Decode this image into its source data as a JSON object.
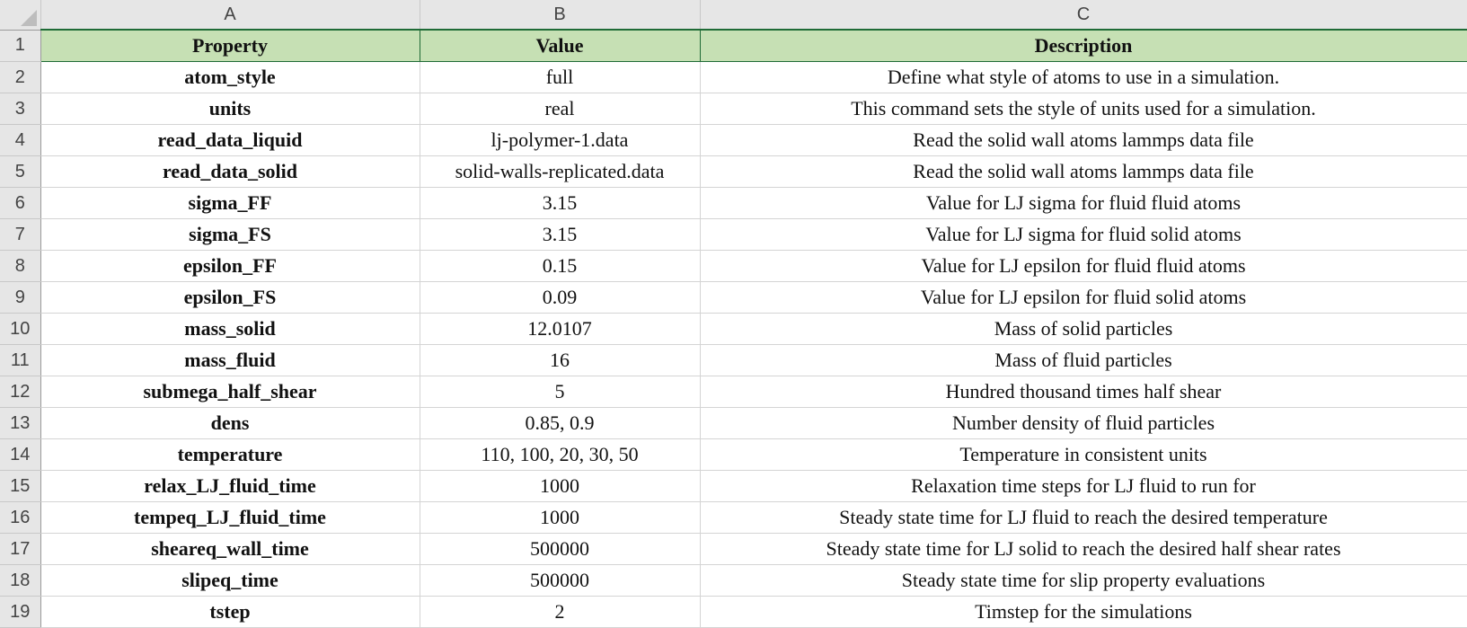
{
  "columns": [
    "A",
    "B",
    "C"
  ],
  "header": {
    "row": "1",
    "property": "Property",
    "value": "Value",
    "description": "Description"
  },
  "rows": [
    {
      "row": "2",
      "property": "atom_style",
      "value": "full",
      "description": "Define what style of atoms to use in a simulation."
    },
    {
      "row": "3",
      "property": "units",
      "value": "real",
      "description": "This command sets the style of units used for a simulation."
    },
    {
      "row": "4",
      "property": "read_data_liquid",
      "value": "lj-polymer-1.data",
      "description": "Read the solid wall atoms lammps data file"
    },
    {
      "row": "5",
      "property": "read_data_solid",
      "value": "solid-walls-replicated.data",
      "description": "Read the solid wall atoms lammps data file"
    },
    {
      "row": "6",
      "property": "sigma_FF",
      "value": "3.15",
      "description": "Value for LJ sigma for fluid fluid atoms"
    },
    {
      "row": "7",
      "property": "sigma_FS",
      "value": "3.15",
      "description": "Value for LJ sigma for fluid solid atoms"
    },
    {
      "row": "8",
      "property": "epsilon_FF",
      "value": "0.15",
      "description": "Value for LJ epsilon for fluid fluid atoms"
    },
    {
      "row": "9",
      "property": "epsilon_FS",
      "value": "0.09",
      "description": "Value for LJ epsilon for fluid solid atoms"
    },
    {
      "row": "10",
      "property": "mass_solid",
      "value": "12.0107",
      "description": "Mass of solid particles"
    },
    {
      "row": "11",
      "property": "mass_fluid",
      "value": "16",
      "description": "Mass of fluid particles"
    },
    {
      "row": "12",
      "property": "submega_half_shear",
      "value": "5",
      "description": "Hundred thousand times half shear"
    },
    {
      "row": "13",
      "property": "dens",
      "value": "0.85, 0.9",
      "description": "Number density of fluid particles"
    },
    {
      "row": "14",
      "property": "temperature",
      "value": "110, 100, 20, 30, 50",
      "description": "Temperature in consistent units"
    },
    {
      "row": "15",
      "property": "relax_LJ_fluid_time",
      "value": "1000",
      "description": "Relaxation time steps for LJ fluid to run for"
    },
    {
      "row": "16",
      "property": "tempeq_LJ_fluid_time",
      "value": "1000",
      "description": "Steady state time for LJ fluid to reach the desired temperature"
    },
    {
      "row": "17",
      "property": "sheareq_wall_time",
      "value": "500000",
      "description": "Steady state time for LJ solid to reach the desired half shear rates"
    },
    {
      "row": "18",
      "property": "slipeq_time",
      "value": "500000",
      "description": "Steady state time for slip property evaluations"
    },
    {
      "row": "19",
      "property": "tstep",
      "value": "2",
      "description": "Timstep for the simulations"
    }
  ],
  "colors": {
    "header_fill": "#c6e0b4",
    "header_border": "#1f6b36",
    "chrome": "#e6e6e6"
  }
}
